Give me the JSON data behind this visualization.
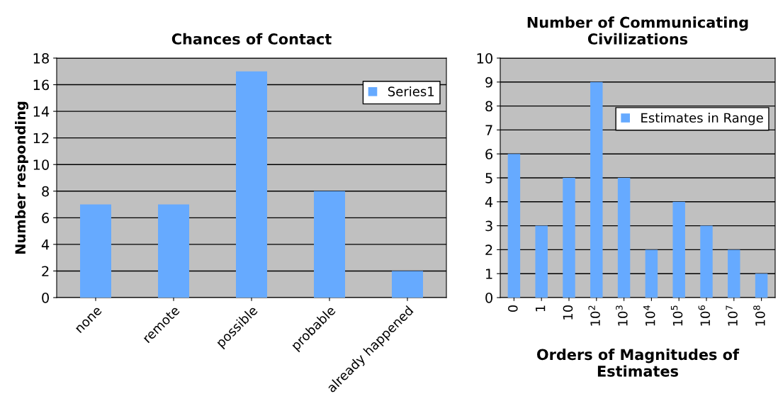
{
  "chart_data": [
    {
      "type": "bar",
      "title": "Chances of Contact",
      "ylabel": "Number responding",
      "categories": [
        "none",
        "remote",
        "possible",
        "probable",
        "already happened"
      ],
      "series": [
        {
          "name": "Series1",
          "color": "#66aaff",
          "values": [
            7,
            7,
            17,
            8,
            2
          ]
        }
      ],
      "ylim": [
        0,
        18
      ],
      "yticks": [
        0,
        2,
        4,
        6,
        8,
        10,
        12,
        14,
        16,
        18
      ],
      "grid": "y",
      "legend": "top right"
    },
    {
      "type": "bar",
      "title": "Number of Communicating\nCivilizations",
      "xlabel": "Orders of Magnitudes of\nEstimates",
      "categories": [
        "0",
        "1",
        "10",
        "10$^{2}$",
        "10$^{3}$",
        "10$^{4}$",
        "10$^{5}$",
        "10$^{6}$",
        "10$^{7}$",
        "10$^{8}$"
      ],
      "series": [
        {
          "name": "Estimates in Range",
          "color": "#66aaff",
          "values": [
            6,
            3,
            5,
            9,
            5,
            2,
            4,
            3,
            2,
            1
          ]
        }
      ],
      "ylim": [
        0,
        10
      ],
      "yticks": [
        0,
        1,
        2,
        3,
        4,
        5,
        6,
        7,
        8,
        9,
        10
      ],
      "grid": "y",
      "legend": "top right"
    }
  ]
}
